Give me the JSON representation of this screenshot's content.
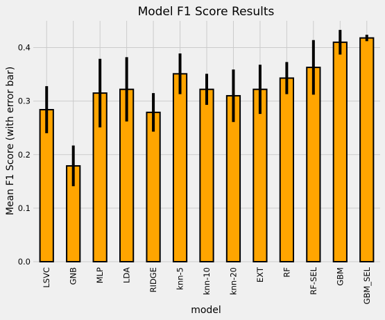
{
  "chart_data": {
    "type": "bar",
    "title": "Model F1 Score Results",
    "xlabel": "model",
    "ylabel": "Mean F1 Score (with error bar)",
    "ylim": [
      0,
      0.45
    ],
    "yticks": [
      "0.0",
      "0.1",
      "0.2",
      "0.3",
      "0.4"
    ],
    "ytick_values": [
      0,
      0.1,
      0.2,
      0.3,
      0.4
    ],
    "grid": true,
    "bar_color": "#ffa500",
    "edge_color": "#000000",
    "background": "#f0f0f0",
    "categories": [
      "LSVC",
      "GNB",
      "MLP",
      "LDA",
      "RIDGE",
      "knn-5",
      "knn-10",
      "knn-20",
      "EXT",
      "RF",
      "RF-SEL",
      "GBM",
      "GBM_SEL"
    ],
    "values": [
      0.284,
      0.179,
      0.315,
      0.322,
      0.279,
      0.351,
      0.322,
      0.31,
      0.322,
      0.343,
      0.363,
      0.41,
      0.418
    ],
    "errors": [
      0.044,
      0.038,
      0.064,
      0.06,
      0.036,
      0.038,
      0.029,
      0.049,
      0.046,
      0.03,
      0.051,
      0.023,
      0.006
    ]
  }
}
